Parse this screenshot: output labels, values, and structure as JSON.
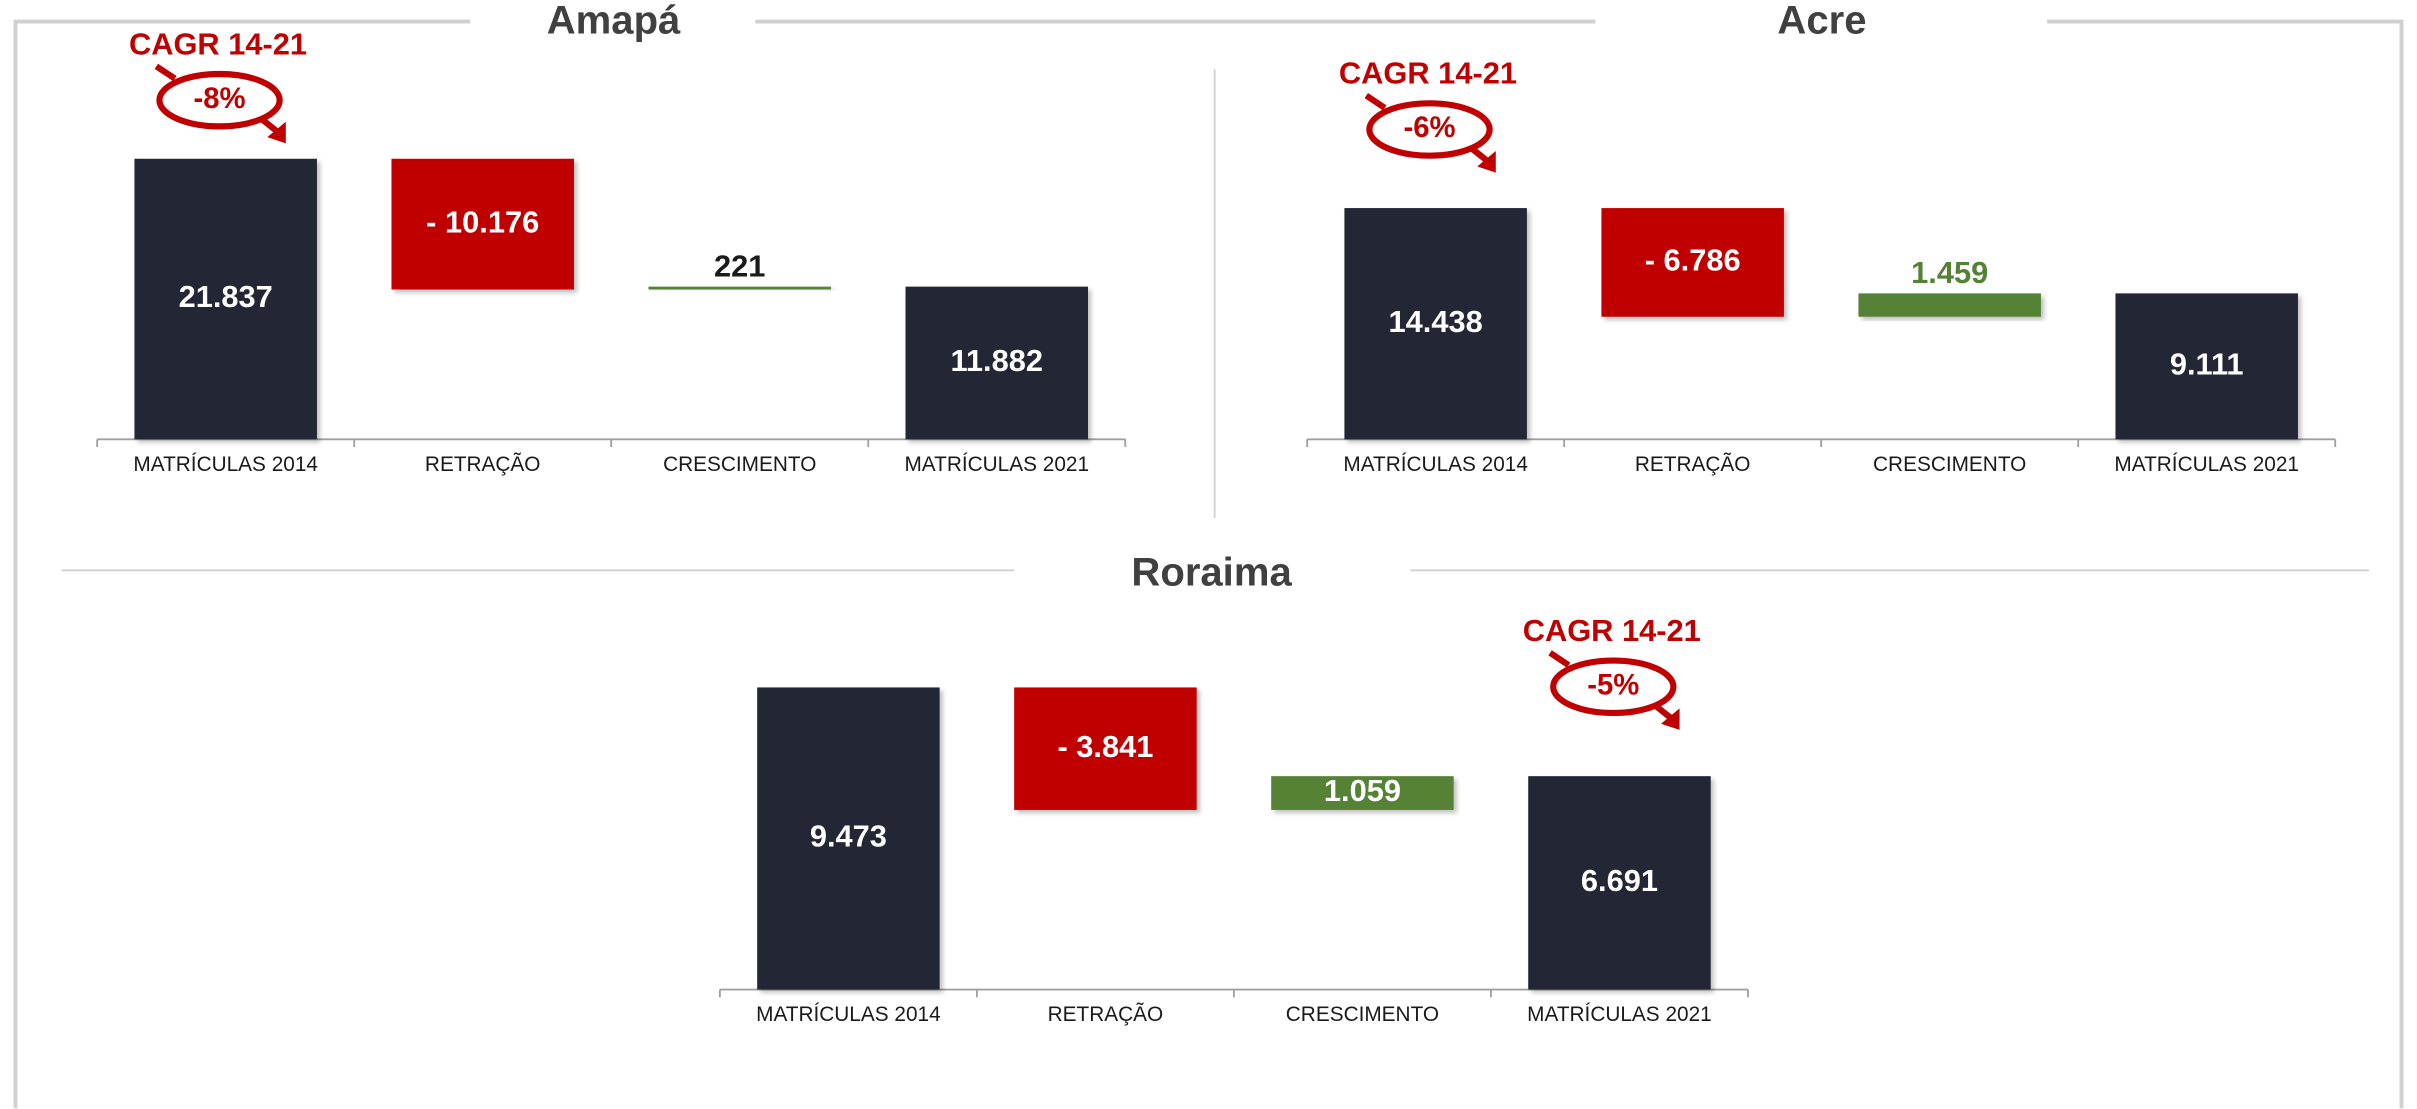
{
  "chart_data": [
    {
      "type": "waterfall",
      "title": "Amapá",
      "categories": [
        "MATRÍCULAS 2014",
        "RETRAÇÃO",
        "CRESCIMENTO",
        "MATRÍCULAS 2021"
      ],
      "values": [
        21837,
        -10176,
        221,
        11882
      ],
      "value_labels": [
        "21.837",
        "- 10.176",
        "221",
        "11.882"
      ],
      "colors": {
        "total": "#222834",
        "decrease": "#c00000",
        "increase": "#548235"
      },
      "annotation": {
        "title": "CAGR 14-21",
        "value": -8,
        "label": "-8%"
      }
    },
    {
      "type": "waterfall",
      "title": "Acre",
      "categories": [
        "MATRÍCULAS 2014",
        "RETRAÇÃO",
        "CRESCIMENTO",
        "MATRÍCULAS 2021"
      ],
      "values": [
        14438,
        -6786,
        1459,
        9111
      ],
      "value_labels": [
        "14.438",
        "- 6.786",
        "1.459",
        "9.111"
      ],
      "colors": {
        "total": "#222834",
        "decrease": "#c00000",
        "increase": "#548235"
      },
      "annotation": {
        "title": "CAGR 14-21",
        "value": -6,
        "label": "-6%"
      }
    },
    {
      "type": "waterfall",
      "title": "Roraima",
      "categories": [
        "MATRÍCULAS 2014",
        "RETRAÇÃO",
        "CRESCIMENTO",
        "MATRÍCULAS 2021"
      ],
      "values": [
        9473,
        -3841,
        1059,
        6691
      ],
      "value_labels": [
        "9.473",
        "- 3.841",
        "1.059",
        "6.691"
      ],
      "colors": {
        "total": "#222834",
        "decrease": "#c00000",
        "increase": "#548235"
      },
      "annotation": {
        "title": "CAGR 14-21",
        "value": -5,
        "label": "-5%"
      }
    }
  ]
}
